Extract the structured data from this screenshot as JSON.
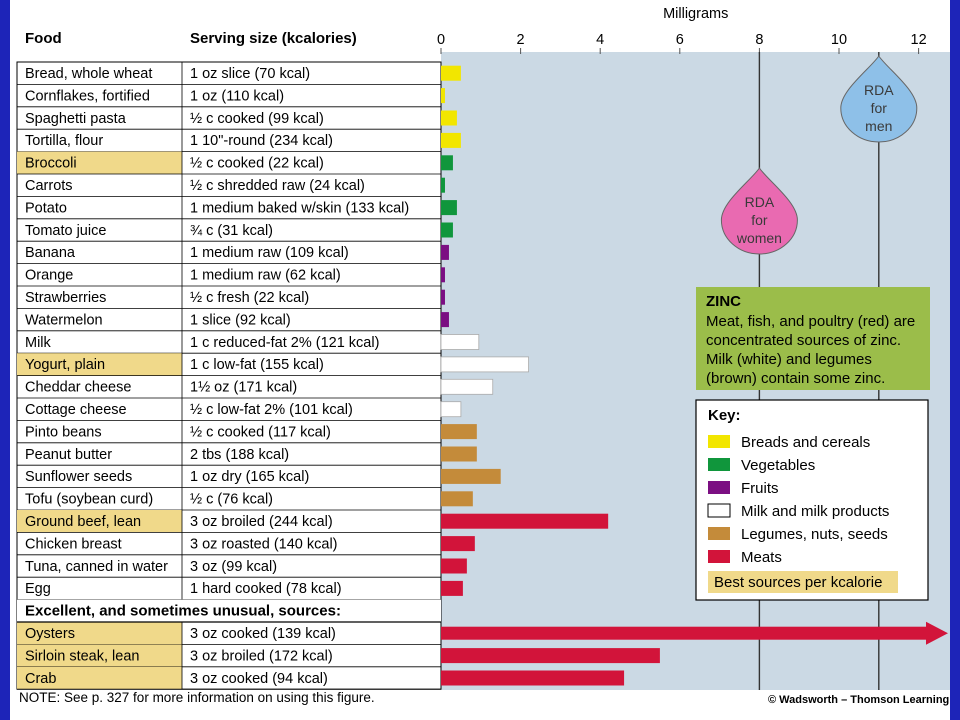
{
  "chart_data": {
    "type": "bar",
    "orientation": "horizontal",
    "axis_label": "Milligrams",
    "xlim": [
      0,
      12.8
    ],
    "ticks": [
      0,
      2,
      4,
      6,
      8,
      10,
      12
    ],
    "col_food": "Food",
    "col_serving": "Serving size (kcalories)",
    "section_label": "Excellent, and sometimes unusual, sources:",
    "rows": [
      {
        "food": "Bread, whole wheat",
        "serving": "1 oz slice (70 kcal)",
        "value": 0.5,
        "group": "bread",
        "best": false
      },
      {
        "food": "Cornflakes, fortified",
        "serving": "1 oz (110 kcal)",
        "value": 0.1,
        "group": "bread",
        "best": false
      },
      {
        "food": "Spaghetti pasta",
        "serving": "½ c cooked (99 kcal)",
        "value": 0.4,
        "group": "bread",
        "best": false
      },
      {
        "food": "Tortilla, flour",
        "serving": "1 10\"-round (234 kcal)",
        "value": 0.5,
        "group": "bread",
        "best": false
      },
      {
        "food": "Broccoli",
        "serving": "½ c cooked (22 kcal)",
        "value": 0.3,
        "group": "veg",
        "best": true
      },
      {
        "food": "Carrots",
        "serving": "½ c shredded raw (24 kcal)",
        "value": 0.1,
        "group": "veg",
        "best": false
      },
      {
        "food": "Potato",
        "serving": "1 medium baked w/skin (133 kcal)",
        "value": 0.4,
        "group": "veg",
        "best": false
      },
      {
        "food": "Tomato juice",
        "serving": "¾ c (31 kcal)",
        "value": 0.3,
        "group": "veg",
        "best": false
      },
      {
        "food": "Banana",
        "serving": "1 medium raw (109 kcal)",
        "value": 0.2,
        "group": "fruit",
        "best": false
      },
      {
        "food": "Orange",
        "serving": "1 medium raw (62 kcal)",
        "value": 0.1,
        "group": "fruit",
        "best": false
      },
      {
        "food": "Strawberries",
        "serving": "½ c fresh (22 kcal)",
        "value": 0.1,
        "group": "fruit",
        "best": false
      },
      {
        "food": "Watermelon",
        "serving": "1 slice (92 kcal)",
        "value": 0.2,
        "group": "fruit",
        "best": false
      },
      {
        "food": "Milk",
        "serving": "1 c reduced-fat 2% (121 kcal)",
        "value": 0.95,
        "group": "milk",
        "best": false
      },
      {
        "food": "Yogurt, plain",
        "serving": "1 c low-fat (155 kcal)",
        "value": 2.2,
        "group": "milk",
        "best": true
      },
      {
        "food": "Cheddar cheese",
        "serving": "1½ oz (171 kcal)",
        "value": 1.3,
        "group": "milk",
        "best": false
      },
      {
        "food": "Cottage cheese",
        "serving": "½ c low-fat 2% (101 kcal)",
        "value": 0.5,
        "group": "milk",
        "best": false
      },
      {
        "food": "Pinto beans",
        "serving": "½ c cooked (117 kcal)",
        "value": 0.9,
        "group": "legume",
        "best": false
      },
      {
        "food": "Peanut butter",
        "serving": "2 tbs (188 kcal)",
        "value": 0.9,
        "group": "legume",
        "best": false
      },
      {
        "food": "Sunflower seeds",
        "serving": "1 oz dry (165 kcal)",
        "value": 1.5,
        "group": "legume",
        "best": false
      },
      {
        "food": "Tofu (soybean curd)",
        "serving": "½ c (76 kcal)",
        "value": 0.8,
        "group": "legume",
        "best": false
      },
      {
        "food": "Ground beef, lean",
        "serving": "3 oz broiled (244 kcal)",
        "value": 4.2,
        "group": "meat",
        "best": true
      },
      {
        "food": "Chicken breast",
        "serving": "3 oz roasted (140 kcal)",
        "value": 0.85,
        "group": "meat",
        "best": false
      },
      {
        "food": "Tuna, canned in water",
        "serving": "3 oz (99 kcal)",
        "value": 0.65,
        "group": "meat",
        "best": false
      },
      {
        "food": "Egg",
        "serving": "1 hard cooked (78 kcal)",
        "value": 0.55,
        "group": "meat",
        "best": false
      }
    ],
    "excellent_rows": [
      {
        "food": "Oysters",
        "serving": "3 oz cooked (139 kcal)",
        "value": 12.8,
        "group": "meat",
        "best": true,
        "off_scale": true
      },
      {
        "food": "Sirloin steak, lean",
        "serving": "3 oz broiled (172 kcal)",
        "value": 5.5,
        "group": "meat",
        "best": true
      },
      {
        "food": "Crab",
        "serving": "3 oz cooked (94 kcal)",
        "value": 4.6,
        "group": "meat",
        "best": true
      }
    ],
    "rda": [
      {
        "lines": [
          "RDA",
          "for",
          "women"
        ],
        "value": 8,
        "color": "#e96ab1"
      },
      {
        "lines": [
          "RDA",
          "for",
          "men"
        ],
        "value": 11,
        "color": "#8ec0e8"
      }
    ],
    "info_box": {
      "title": "ZINC",
      "lines": [
        "Meat, fish, and poultry (red) are",
        "concentrated sources of zinc.",
        "Milk (white) and legumes",
        "(brown) contain some zinc."
      ],
      "color": "#9bbd4a"
    },
    "key": {
      "title": "Key:",
      "items": [
        {
          "group": "bread",
          "label": "Breads and cereals",
          "color": "#f2e600"
        },
        {
          "group": "veg",
          "label": "Vegetables",
          "color": "#10963c"
        },
        {
          "group": "fruit",
          "label": "Fruits",
          "color": "#7b0f82"
        },
        {
          "group": "milk",
          "label": "Milk and milk products",
          "color": "#ffffff"
        },
        {
          "group": "legume",
          "label": "Legumes, nuts, seeds",
          "color": "#c48b3a"
        },
        {
          "group": "meat",
          "label": "Meats",
          "color": "#d2143a"
        }
      ],
      "best_label": "Best sources per kcalorie",
      "best_color": "#f0d98a"
    },
    "plot_bg": "#cbd9e4",
    "note": "NOTE: See p. 327 for more information on using this figure.",
    "credit": "© Wadsworth – Thomson Learning"
  }
}
